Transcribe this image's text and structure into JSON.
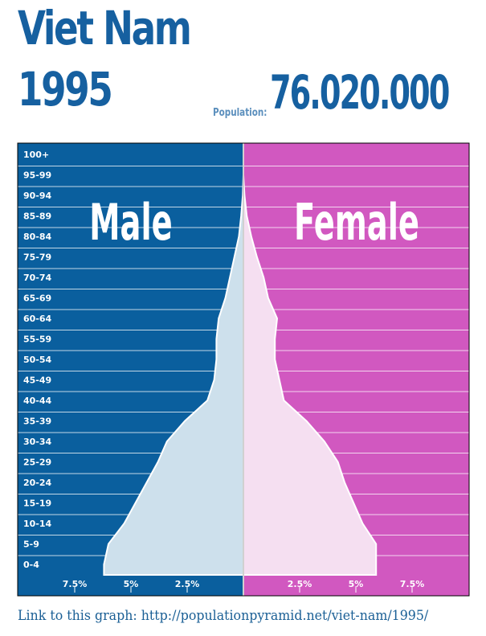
{
  "header": {
    "country": "Viet Nam",
    "year": "1995",
    "population_label": "Population:",
    "population_value": "76.020.000"
  },
  "footer": {
    "link_text": "Link to this graph: http://populationpyramid.net/viet-nam/1995/"
  },
  "colors": {
    "male_bg": "#0a5f9e",
    "female_bg": "#d158c0",
    "male_fill": "#cde0ec",
    "female_fill": "#f5dff1",
    "title": "#1660a0"
  },
  "chart_data": {
    "type": "bar",
    "orientation": "horizontal-pyramid",
    "categories": [
      "100+",
      "95-99",
      "90-94",
      "85-89",
      "80-84",
      "75-79",
      "70-74",
      "65-69",
      "60-64",
      "55-59",
      "50-54",
      "45-49",
      "40-44",
      "35-39",
      "30-34",
      "25-29",
      "20-24",
      "15-19",
      "10-14",
      "5-9",
      "0-4"
    ],
    "series": [
      {
        "name": "Male",
        "values": [
          0.0,
          0.0,
          0.03,
          0.1,
          0.2,
          0.4,
          0.6,
          0.8,
          1.1,
          1.2,
          1.2,
          1.3,
          1.6,
          2.6,
          3.4,
          3.8,
          4.3,
          4.8,
          5.3,
          6.0,
          6.2
        ]
      },
      {
        "name": "Female",
        "values": [
          0.0,
          0.0,
          0.05,
          0.15,
          0.35,
          0.6,
          0.9,
          1.1,
          1.5,
          1.4,
          1.4,
          1.6,
          1.8,
          2.8,
          3.6,
          4.2,
          4.5,
          4.9,
          5.3,
          5.9,
          5.9
        ]
      }
    ],
    "x_ticks_male": [
      "7.5%",
      "5%",
      "2.5%"
    ],
    "x_ticks_female": [
      "2.5%",
      "5%",
      "7.5%"
    ],
    "xlim": [
      0,
      10
    ],
    "grid": true
  }
}
